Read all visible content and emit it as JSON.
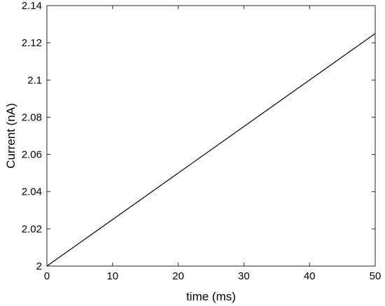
{
  "chart_data": {
    "type": "line",
    "title": "",
    "xlabel": "time (ms)",
    "ylabel": "Current (nA)",
    "xlim": [
      0,
      50
    ],
    "ylim": [
      2,
      2.14
    ],
    "xticks": [
      0,
      10,
      20,
      30,
      40,
      50
    ],
    "yticks": [
      2,
      2.02,
      2.04,
      2.06,
      2.08,
      2.1,
      2.12,
      2.14
    ],
    "xtick_labels": [
      "0",
      "10",
      "20",
      "30",
      "40",
      "50"
    ],
    "ytick_labels": [
      "2",
      "2.02",
      "2.04",
      "2.06",
      "2.08",
      "2.1",
      "2.12",
      "2.14"
    ],
    "grid": false,
    "series": [
      {
        "x": [
          0,
          50
        ],
        "y": [
          2.0,
          2.125
        ],
        "color": "#000000"
      }
    ]
  }
}
